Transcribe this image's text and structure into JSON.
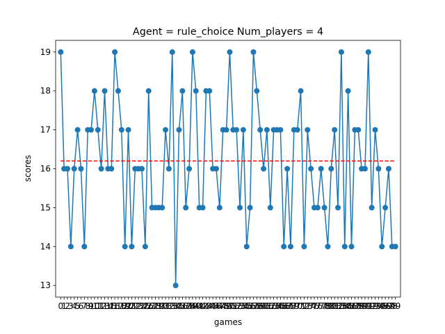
{
  "chart_data": {
    "type": "line",
    "title": "Agent = rule_choice Num_players = 4",
    "xlabel": "games",
    "ylabel": "scores",
    "xlim": [
      -1.5,
      100.5
    ],
    "ylim": [
      12.7,
      19.3
    ],
    "yticks": [
      13,
      14,
      15,
      16,
      17,
      18,
      19
    ],
    "x": [
      0,
      1,
      2,
      3,
      4,
      5,
      6,
      7,
      8,
      9,
      10,
      11,
      12,
      13,
      14,
      15,
      16,
      17,
      18,
      19,
      20,
      21,
      22,
      23,
      24,
      25,
      26,
      27,
      28,
      29,
      30,
      31,
      32,
      33,
      34,
      35,
      36,
      37,
      38,
      39,
      40,
      41,
      42,
      43,
      44,
      45,
      46,
      47,
      48,
      49,
      50,
      51,
      52,
      53,
      54,
      55,
      56,
      57,
      58,
      59,
      60,
      61,
      62,
      63,
      64,
      65,
      66,
      67,
      68,
      69,
      70,
      71,
      72,
      73,
      74,
      75,
      76,
      77,
      78,
      79,
      80,
      81,
      82,
      83,
      84,
      85,
      86,
      87,
      88,
      89,
      90,
      91,
      92,
      93,
      94,
      95,
      96,
      97,
      98,
      99
    ],
    "series": [
      {
        "name": "",
        "color": "#1f77b4",
        "marker": "circle",
        "values": [
          19,
          16,
          16,
          14,
          16,
          17,
          16,
          14,
          17,
          17,
          18,
          17,
          16,
          18,
          16,
          16,
          19,
          18,
          17,
          14,
          17,
          14,
          16,
          16,
          16,
          14,
          18,
          15,
          15,
          15,
          15,
          17,
          16,
          19,
          13,
          17,
          18,
          15,
          16,
          19,
          18,
          15,
          15,
          18,
          18,
          16,
          16,
          15,
          17,
          17,
          19,
          17,
          17,
          15,
          17,
          14,
          15,
          19,
          18,
          17,
          16,
          17,
          15,
          17,
          17,
          17,
          14,
          16,
          14,
          17,
          17,
          18,
          14,
          17,
          16,
          15,
          15,
          16,
          15,
          14,
          16,
          17,
          15,
          19,
          14,
          18,
          14,
          17,
          17,
          16,
          16,
          19,
          15,
          17,
          16,
          14,
          15,
          16,
          14,
          14
        ]
      }
    ],
    "reference_line": {
      "value": 16.2,
      "style": "dashed",
      "color": "#ff0000"
    },
    "legend": "none",
    "grid": false
  }
}
